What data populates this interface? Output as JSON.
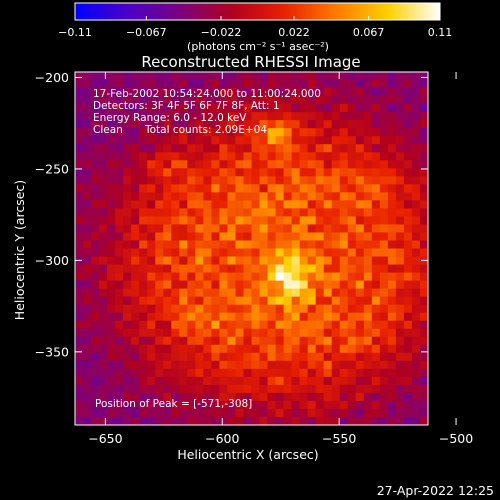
{
  "chart_data": {
    "type": "heatmap",
    "title": "Reconstructed RHESSI Image",
    "xlabel": "Heliocentric X (arcsec)",
    "ylabel": "Heliocentric Y (arcsec)",
    "xlim": [
      -663,
      -512
    ],
    "ylim": [
      -390,
      -197
    ],
    "x_ticks": [
      -650,
      -600,
      -550,
      -500
    ],
    "y_ticks": [
      -200,
      -250,
      -300,
      -350
    ],
    "x_tick_labels": [
      "−650",
      "−600",
      "−550",
      "−500"
    ],
    "y_tick_labels": [
      "−200",
      "−250",
      "−300",
      "−350"
    ],
    "colorbar": {
      "range": [
        -0.11,
        0.11
      ],
      "ticks": [
        -0.11,
        -0.067,
        -0.022,
        0.022,
        0.067,
        0.11
      ],
      "tick_labels": [
        "−0.11",
        "−0.067",
        "−0.022",
        "0.022",
        "0.067",
        "0.11"
      ],
      "unit_label": "(photons cm⁻² s⁻¹ asec⁻²)",
      "colormap": [
        "#0000ff",
        "#4b00c8",
        "#7a0080",
        "#b00020",
        "#e82000",
        "#ff7a00",
        "#ffd000",
        "#ffffff"
      ]
    },
    "annotations": [
      "17-Feb-2002 10:54:24.000 to 11:00:24.000",
      "Detectors: 3F 4F 5F 6F 7F 8F, Att: 1",
      "Energy Range: 6.0 - 12.0 keV",
      "Clean",
      "Total counts: 2.09E+04",
      "Position of Peak = [-571,-308]"
    ],
    "peak": {
      "x": -571,
      "y": -308,
      "value": 0.11
    },
    "secondary_sources": [
      {
        "x": -577,
        "y": -230,
        "value": 0.085
      },
      {
        "x": -625,
        "y": -248,
        "value": 0.05
      },
      {
        "x": -535,
        "y": -263,
        "value": 0.05
      },
      {
        "x": -610,
        "y": -330,
        "value": 0.05
      },
      {
        "x": -540,
        "y": -340,
        "value": 0.045
      }
    ]
  },
  "footer": {
    "timestamp": "27-Apr-2022 12:25"
  }
}
